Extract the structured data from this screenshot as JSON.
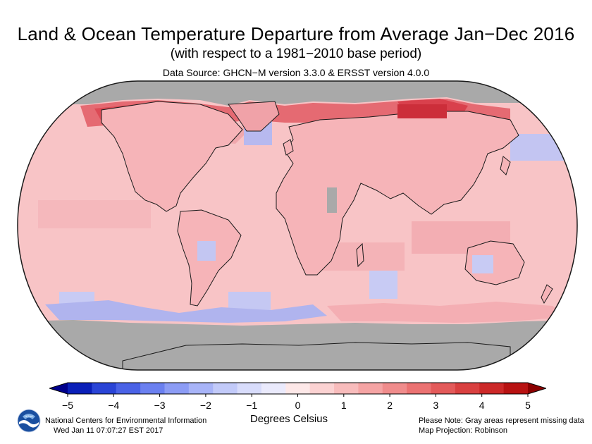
{
  "title": "Land & Ocean Temperature Departure from Average Jan−Dec 2016",
  "subtitle": "(with respect to a 1981−2010 base period)",
  "data_source": "Data Source: GHCN−M version 3.3.0 & ERSST version 4.0.0",
  "legend": {
    "units": "Degrees Celsius",
    "ticks": [
      "−5",
      "−4",
      "−3",
      "−2",
      "−1",
      "0",
      "1",
      "2",
      "3",
      "4",
      "5"
    ],
    "range": [
      -5,
      5
    ],
    "colors": [
      "#00008b",
      "#0a1fb8",
      "#2a44d6",
      "#4a62e6",
      "#6b80f0",
      "#8c9cf5",
      "#a8b4f8",
      "#c2caf9",
      "#d8dcfb",
      "#eaeafc",
      "#fde8e8",
      "#fbd2d2",
      "#f8bcbc",
      "#f5a4a4",
      "#f08c8c",
      "#eb7272",
      "#e35a5a",
      "#d94040",
      "#cc2828",
      "#b81212",
      "#8b0000"
    ]
  },
  "map": {
    "projection_note": "Robinson",
    "missing_color": "#a9a9a9",
    "ocean_default_color": "#f8c4c6",
    "border_color": "#1a1a1a"
  },
  "footer": {
    "org": "National Centers for Environmental Information",
    "date": "Wed Jan 11 07:07:27 EST 2017",
    "note": "Please Note: Gray areas represent missing data",
    "projection": "Map Projection: Robinson",
    "logo_text": "NOAA"
  }
}
